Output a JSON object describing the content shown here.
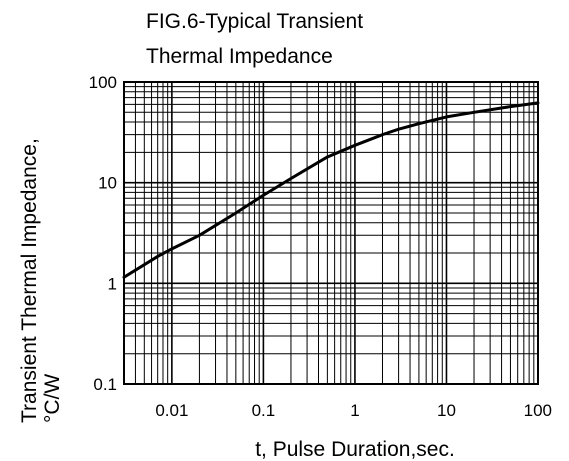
{
  "chart_data": {
    "type": "line",
    "title_lines": [
      "FIG.6-Typical Transient",
      "Thermal Impedance"
    ],
    "xlabel": "t, Pulse Duration,sec.",
    "ylabel_lines": [
      "Transient Thermal Impedance,",
      "°C/W"
    ],
    "xscale": "log",
    "yscale": "log",
    "xlim": [
      0.003,
      100
    ],
    "ylim": [
      0.1,
      100
    ],
    "x_ticks": [
      {
        "value": 0.01,
        "label": "0.01"
      },
      {
        "value": 0.1,
        "label": "0.1"
      },
      {
        "value": 1,
        "label": "1"
      },
      {
        "value": 10,
        "label": "10"
      },
      {
        "value": 100,
        "label": "100"
      }
    ],
    "y_ticks": [
      {
        "value": 0.1,
        "label": "0.1"
      },
      {
        "value": 1,
        "label": "1"
      },
      {
        "value": 10,
        "label": "10"
      },
      {
        "value": 100,
        "label": "100"
      }
    ],
    "grid": true,
    "colors": {
      "line": "#000000",
      "grid": "#000000",
      "background": "#ffffff"
    },
    "series": [
      {
        "x": [
          0.003,
          0.007,
          0.01,
          0.02,
          0.05,
          0.1,
          0.2,
          0.5,
          1,
          2,
          3,
          5,
          10,
          20,
          50,
          100
        ],
        "y": [
          1.15,
          1.85,
          2.2,
          3.0,
          5.0,
          7.5,
          11.0,
          18.0,
          23.5,
          30.0,
          34.0,
          38.5,
          45.0,
          50.0,
          57.0,
          62.0
        ]
      }
    ]
  }
}
